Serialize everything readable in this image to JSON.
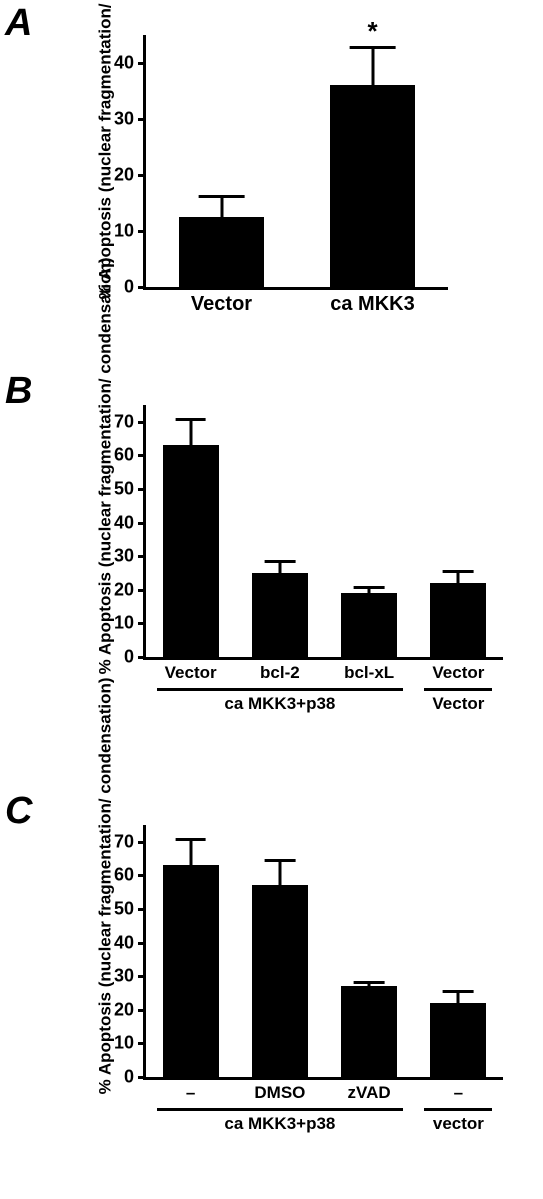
{
  "panelA": {
    "label": "A",
    "label_fontsize": 38,
    "y_axis_title": "% Apoptosis (nuclear fragmentation/ ondensation)",
    "y_axis_fontsize": 17,
    "ylim": [
      0,
      45
    ],
    "yticks": [
      0,
      10,
      20,
      30,
      40
    ],
    "tick_fontsize": 18,
    "xlabel_fontsize": 20,
    "bar_color": "#000000",
    "bars": [
      {
        "label": "Vector",
        "value": 12.5,
        "err": 4
      },
      {
        "label": "ca MKK3",
        "value": 36,
        "err": 7,
        "sig": "*"
      }
    ],
    "sig_fontsize": 26
  },
  "panelB": {
    "label": "B",
    "label_fontsize": 38,
    "y_axis_title": "% Apoptosis (nuclear fragmentation/ condensation)",
    "y_axis_fontsize": 17,
    "ylim": [
      0,
      75
    ],
    "yticks": [
      0,
      10,
      20,
      30,
      40,
      50,
      60,
      70
    ],
    "tick_fontsize": 18,
    "xlabel_fontsize": 17,
    "bar_color": "#000000",
    "bars": [
      {
        "label": "Vector",
        "value": 63,
        "err": 8
      },
      {
        "label": "bcl-2",
        "value": 25,
        "err": 4
      },
      {
        "label": "bcl-xL",
        "value": 19,
        "err": 2
      },
      {
        "label": "Vector",
        "value": 22,
        "err": 4
      }
    ],
    "group_labels": [
      {
        "label": "ca MKK3+p38",
        "span": [
          0,
          2
        ]
      },
      {
        "label": "Vector",
        "span": [
          3,
          3
        ]
      }
    ],
    "group_fontsize": 17
  },
  "panelC": {
    "label": "C",
    "label_fontsize": 38,
    "y_axis_title": "% Apoptosis (nuclear fragmentation/ condensation)",
    "y_axis_fontsize": 17,
    "ylim": [
      0,
      75
    ],
    "yticks": [
      0,
      10,
      20,
      30,
      40,
      50,
      60,
      70
    ],
    "tick_fontsize": 18,
    "xlabel_fontsize": 17,
    "bar_color": "#000000",
    "bars": [
      {
        "label": "–",
        "value": 63,
        "err": 8
      },
      {
        "label": "DMSO",
        "value": 57,
        "err": 8
      },
      {
        "label": "zVAD",
        "value": 27,
        "err": 1.5
      },
      {
        "label": "–",
        "value": 22,
        "err": 4
      }
    ],
    "group_labels": [
      {
        "label": "ca MKK3+p38",
        "span": [
          0,
          2
        ]
      },
      {
        "label": "vector",
        "span": [
          3,
          3
        ]
      }
    ],
    "group_fontsize": 17
  }
}
